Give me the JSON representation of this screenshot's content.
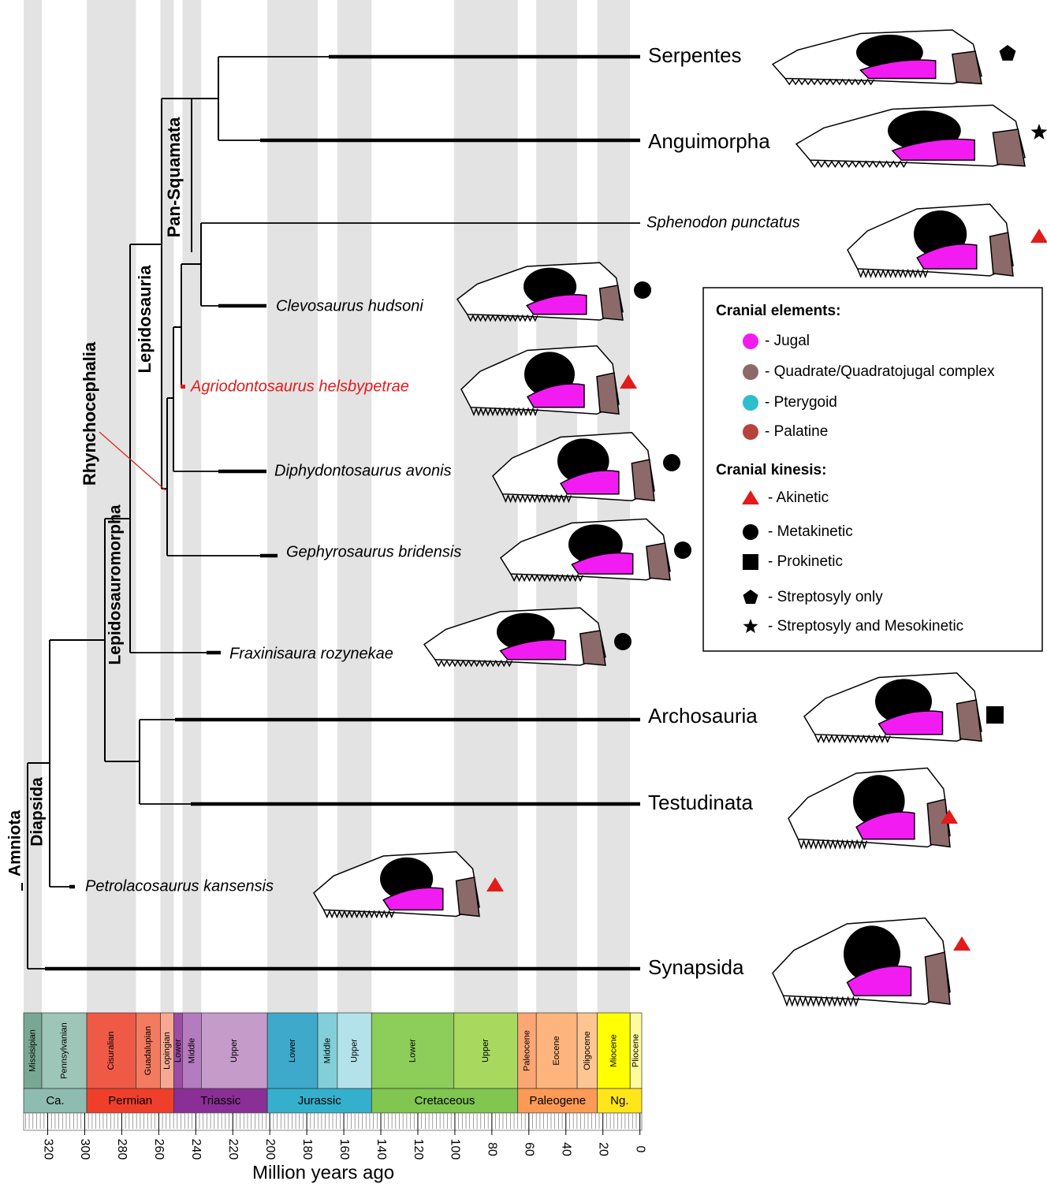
{
  "clades": [
    "Amniota",
    "Diapsida",
    "Lepidosauromorpha",
    "Rhynchocephalia",
    "Lepidosauria",
    "Pan-Squamata"
  ],
  "taxa": [
    "Serpentes",
    "Anguimorpha",
    "Sphenodon punctatus",
    "Clevosaurus hudsoni",
    "Agriodontosaurus helsbypetrae",
    "Diphydontosaurus avonis",
    "Gephyrosaurus bridensis",
    "Fraxinisaura rozynekae",
    "Archosauria",
    "Testudinata",
    "Petrolacosaurus kansensis",
    "Synapsida"
  ],
  "legend": {
    "elements_title": "Cranial elements:",
    "elements": [
      {
        "label": "- Jugal",
        "color": "#f21cf2"
      },
      {
        "label": "- Quadrate/Quadratojugal complex",
        "color": "#8c6a6a"
      },
      {
        "label": "- Pterygoid",
        "color": "#2ebfcc"
      },
      {
        "label": "- Palatine",
        "color": "#b5443c"
      }
    ],
    "kinesis_title": "Cranial kinesis:",
    "kinesis": [
      "- Akinetic",
      "- Metakinetic",
      "- Prokinetic",
      "- Streptosyly only",
      "- Streptosyly and Mesokinetic"
    ]
  },
  "timescale": {
    "xlim": [
      333,
      -1
    ],
    "xticks": [
      320,
      300,
      280,
      260,
      240,
      220,
      200,
      180,
      160,
      140,
      120,
      100,
      80,
      60,
      40,
      20,
      0
    ],
    "xlabel": "Million years ago",
    "epochs": [
      {
        "label": "Missisipian",
        "start": 333,
        "end": 323.2,
        "color": "#78a895"
      },
      {
        "label": "Pennsylvanian",
        "start": 323.2,
        "end": 298.9,
        "color": "#9dc5b8"
      },
      {
        "label": "Cisuralian",
        "start": 298.9,
        "end": 272.3,
        "color": "#ef5a47"
      },
      {
        "label": "Guadalupian",
        "start": 272.3,
        "end": 259.1,
        "color": "#f37b60"
      },
      {
        "label": "Lopingian",
        "start": 259.1,
        "end": 251.9,
        "color": "#f8a892"
      },
      {
        "label": "Lower",
        "start": 251.9,
        "end": 247.2,
        "color": "#9b4ea4"
      },
      {
        "label": "Middle",
        "start": 247.2,
        "end": 237,
        "color": "#b57bbf"
      },
      {
        "label": "Upper",
        "start": 237,
        "end": 201.3,
        "color": "#c59bca"
      },
      {
        "label": "Lower",
        "start": 201.3,
        "end": 174.1,
        "color": "#3ea9ca"
      },
      {
        "label": "Middle",
        "start": 174.1,
        "end": 163.5,
        "color": "#83cfd9"
      },
      {
        "label": "Upper",
        "start": 163.5,
        "end": 145,
        "color": "#b4e2ea"
      },
      {
        "label": "Lower",
        "start": 145,
        "end": 100.5,
        "color": "#8dcd5a"
      },
      {
        "label": "Upper",
        "start": 100.5,
        "end": 66,
        "color": "#a8d95e"
      },
      {
        "label": "Paleocene",
        "start": 66,
        "end": 56,
        "color": "#fca673"
      },
      {
        "label": "Eocene",
        "start": 56,
        "end": 33.9,
        "color": "#fdb47d"
      },
      {
        "label": "Oligocene",
        "start": 33.9,
        "end": 23,
        "color": "#fdc592"
      },
      {
        "label": "Miocene",
        "start": 23,
        "end": 5.3,
        "color": "#ffff00"
      },
      {
        "label": "Pliocene",
        "start": 5.3,
        "end": -1,
        "color": "#fffa9e"
      }
    ],
    "periods": [
      {
        "label": "Ca.",
        "start": 333,
        "end": 298.9,
        "color": "#8fbcb0"
      },
      {
        "label": "Permian",
        "start": 298.9,
        "end": 251.9,
        "color": "#ef3f2b"
      },
      {
        "label": "Triassic",
        "start": 251.9,
        "end": 201.3,
        "color": "#8a2f96"
      },
      {
        "label": "Jurassic",
        "start": 201.3,
        "end": 145,
        "color": "#35b0cc"
      },
      {
        "label": "Cretaceous",
        "start": 145,
        "end": 66,
        "color": "#80c650"
      },
      {
        "label": "Paleogene",
        "start": 66,
        "end": 23,
        "color": "#fd9a55"
      },
      {
        "label": "Ng.",
        "start": 23,
        "end": -1,
        "color": "#ffe61a"
      }
    ]
  }
}
